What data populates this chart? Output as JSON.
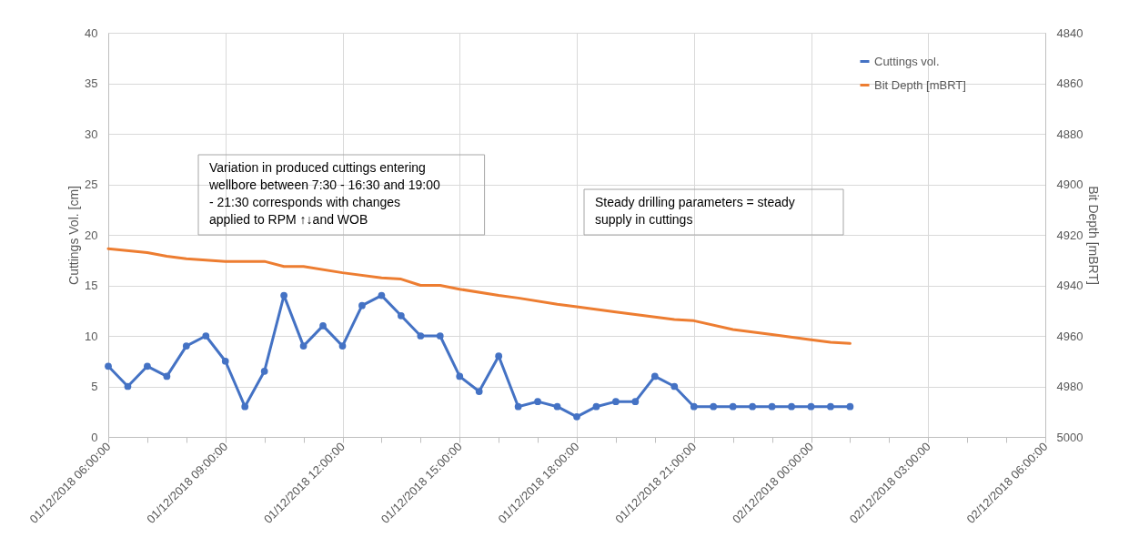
{
  "chart_data": {
    "type": "line",
    "xlabel": null,
    "ylabel": "Cuttings Vol. [cm]",
    "y2label": "Bit Depth [mBRT]",
    "x": [
      "2018-12-01T06:00",
      "2018-12-01T06:30",
      "2018-12-01T07:00",
      "2018-12-01T07:30",
      "2018-12-01T08:00",
      "2018-12-01T08:30",
      "2018-12-01T09:00",
      "2018-12-01T09:30",
      "2018-12-01T10:00",
      "2018-12-01T10:30",
      "2018-12-01T11:00",
      "2018-12-01T11:30",
      "2018-12-01T12:00",
      "2018-12-01T12:30",
      "2018-12-01T13:00",
      "2018-12-01T13:30",
      "2018-12-01T14:00",
      "2018-12-01T14:30",
      "2018-12-01T15:00",
      "2018-12-01T15:30",
      "2018-12-01T16:00",
      "2018-12-01T16:30",
      "2018-12-01T17:00",
      "2018-12-01T17:30",
      "2018-12-01T18:00",
      "2018-12-01T18:30",
      "2018-12-01T19:00",
      "2018-12-01T19:30",
      "2018-12-01T20:00",
      "2018-12-01T20:30",
      "2018-12-01T21:00",
      "2018-12-01T21:30",
      "2018-12-01T22:00",
      "2018-12-01T22:30",
      "2018-12-01T23:00",
      "2018-12-01T23:30",
      "2018-12-02T00:00",
      "2018-12-02T00:30",
      "2018-12-02T01:00"
    ],
    "series": [
      {
        "name": "Cuttings vol.",
        "color": "#4472c4",
        "marker": "circle",
        "values": [
          7,
          5,
          7,
          6,
          9,
          10,
          7.5,
          3,
          6.5,
          14,
          9,
          11,
          9,
          13,
          14,
          12,
          10,
          10,
          6,
          4.5,
          8,
          3,
          3.5,
          3,
          2,
          3,
          3.5,
          3.5,
          6,
          5,
          3,
          3,
          3,
          3,
          3,
          3,
          3,
          3,
          3
        ]
      },
      {
        "name": "Bit Depth [mBRT]",
        "color": "#ed7d31",
        "marker": "none",
        "axis": "y2",
        "x": [
          "2018-12-01T06:00",
          "2018-12-01T07:00",
          "2018-12-01T07:30",
          "2018-12-01T08:00",
          "2018-12-01T09:00",
          "2018-12-01T10:00",
          "2018-12-01T10:30",
          "2018-12-01T11:00",
          "2018-12-01T12:00",
          "2018-12-01T13:00",
          "2018-12-01T13:30",
          "2018-12-01T14:00",
          "2018-12-01T14:30",
          "2018-12-01T15:00",
          "2018-12-01T16:00",
          "2018-12-01T16:30",
          "2018-12-01T17:30",
          "2018-12-01T18:00",
          "2018-12-01T19:00",
          "2018-12-01T20:00",
          "2018-12-01T20:30",
          "2018-12-01T21:00",
          "2018-12-01T22:00",
          "2018-12-01T23:00",
          "2018-12-02T00:00",
          "2018-12-02T00:30",
          "2018-12-02T01:00"
        ],
        "values": [
          4925.5,
          4927,
          4928.5,
          4929.5,
          4930.5,
          4930.5,
          4932.5,
          4932.5,
          4935,
          4937,
          4937.5,
          4940,
          4940,
          4941.5,
          4944,
          4945,
          4947.5,
          4948.5,
          4950.5,
          4952.5,
          4953.5,
          4954,
          4957.5,
          4959.5,
          4961.5,
          4962.5,
          4963
        ]
      }
    ],
    "xlim": [
      "2018-12-01T06:00",
      "2018-12-02T06:00"
    ],
    "xticks": [
      {
        "value": "2018-12-01T06:00",
        "label": "01/12/2018 06:00:00"
      },
      {
        "value": "2018-12-01T07:00",
        "label": null
      },
      {
        "value": "2018-12-01T08:00",
        "label": null
      },
      {
        "value": "2018-12-01T09:00",
        "label": "01/12/2018 09:00:00"
      },
      {
        "value": "2018-12-01T10:00",
        "label": null
      },
      {
        "value": "2018-12-01T11:00",
        "label": null
      },
      {
        "value": "2018-12-01T12:00",
        "label": "01/12/2018 12:00:00"
      },
      {
        "value": "2018-12-01T13:00",
        "label": null
      },
      {
        "value": "2018-12-01T14:00",
        "label": null
      },
      {
        "value": "2018-12-01T15:00",
        "label": "01/12/2018 15:00:00"
      },
      {
        "value": "2018-12-01T16:00",
        "label": null
      },
      {
        "value": "2018-12-01T17:00",
        "label": null
      },
      {
        "value": "2018-12-01T18:00",
        "label": "01/12/2018 18:00:00"
      },
      {
        "value": "2018-12-01T19:00",
        "label": null
      },
      {
        "value": "2018-12-01T20:00",
        "label": null
      },
      {
        "value": "2018-12-01T21:00",
        "label": "01/12/2018 21:00:00"
      },
      {
        "value": "2018-12-01T22:00",
        "label": null
      },
      {
        "value": "2018-12-01T23:00",
        "label": null
      },
      {
        "value": "2018-12-02T00:00",
        "label": "02/12/2018 00:00:00"
      },
      {
        "value": "2018-12-02T01:00",
        "label": null
      },
      {
        "value": "2018-12-02T02:00",
        "label": null
      },
      {
        "value": "2018-12-02T03:00",
        "label": "02/12/2018 03:00:00"
      },
      {
        "value": "2018-12-02T04:00",
        "label": null
      },
      {
        "value": "2018-12-02T05:00",
        "label": null
      },
      {
        "value": "2018-12-02T06:00",
        "label": "02/12/2018 06:00:00"
      }
    ],
    "ylim": [
      0,
      40
    ],
    "yticks": [
      0,
      5,
      10,
      15,
      20,
      25,
      30,
      35,
      40
    ],
    "y2lim": [
      5000,
      4840
    ],
    "y2ticks": [
      5000,
      4980,
      4960,
      4940,
      4920,
      4900,
      4880,
      4860,
      4840
    ],
    "grid": true,
    "legend": "top right",
    "annotations": [
      "Variation in produced cuttings entering wellbore between 7:30 - 16:30 and 19:00 - 21:30 corresponds with changes applied to RPM ↑↓and WOB",
      "Steady drilling parameters = steady supply in cuttings"
    ]
  }
}
